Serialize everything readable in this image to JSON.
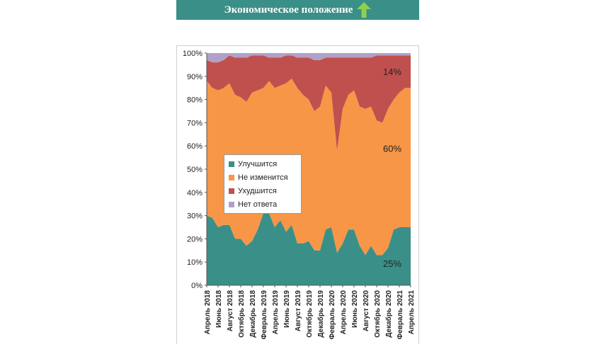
{
  "banner": {
    "title": "Экономическое положение",
    "icon": "arrow-up-icon",
    "icon_color": "#8fd14f",
    "background": "#3a8f88"
  },
  "chart_data": {
    "type": "area",
    "stacked": true,
    "normalized": true,
    "ylim": [
      0,
      100
    ],
    "y_ticks": [
      "0%",
      "10%",
      "20%",
      "30%",
      "40%",
      "50%",
      "60%",
      "70%",
      "80%",
      "90%",
      "100%"
    ],
    "x_ticks": [
      "Апрель 2018",
      "Июнь 2018",
      "Август 2018",
      "Октябрь 2018",
      "Декабрь 2018",
      "Февраль 2019",
      "Апрель 2019",
      "Июнь 2019",
      "Август 2019",
      "Октябрь 2019",
      "Декабрь 2019",
      "Февраль 2020",
      "Апрель 2020",
      "Июнь 2020",
      "Август 2020",
      "Октябрь 2020",
      "Декабрь 2020",
      "Февраль 2021",
      "Апрель 2021"
    ],
    "x": [
      0,
      1,
      2,
      3,
      4,
      5,
      6,
      7,
      8,
      9,
      10,
      11,
      12,
      13,
      14,
      15,
      16,
      17,
      18,
      19,
      20,
      21,
      22,
      23,
      24,
      25,
      26,
      27,
      28,
      29,
      30,
      31,
      32,
      33,
      34,
      35,
      36
    ],
    "series": [
      {
        "name": "Улучшится",
        "color": "#3a8f88",
        "values": [
          30,
          29,
          25,
          26,
          26,
          20,
          20,
          17,
          19,
          24,
          31,
          31,
          25,
          28,
          23,
          26,
          18,
          18,
          19,
          15,
          15,
          24,
          25,
          14,
          18,
          24,
          24,
          17,
          13,
          17,
          13,
          13,
          16,
          24,
          25,
          25,
          25
        ]
      },
      {
        "name": "Не изменится",
        "color": "#f79646",
        "values": [
          58,
          56,
          59,
          59,
          61,
          62,
          61,
          62,
          64,
          60,
          54,
          57,
          60,
          58,
          64,
          63,
          67,
          64,
          61,
          60,
          62,
          62,
          58,
          44,
          58,
          58,
          60,
          60,
          63,
          60,
          58,
          57,
          60,
          56,
          58,
          60,
          60
        ]
      },
      {
        "name": "Ухудшится",
        "color": "#c0504d",
        "values": [
          9,
          11,
          12,
          12,
          12,
          16,
          17,
          19,
          16,
          15,
          14,
          10,
          13,
          12,
          12,
          10,
          13,
          16,
          18,
          22,
          20,
          12,
          15,
          40,
          22,
          16,
          14,
          21,
          22,
          21,
          28,
          29,
          23,
          19,
          16,
          14,
          14
        ]
      },
      {
        "name": "Нет ответа",
        "color": "#b1a0c7",
        "values": [
          3,
          4,
          4,
          3,
          1,
          2,
          2,
          2,
          1,
          1,
          1,
          2,
          2,
          2,
          1,
          1,
          2,
          2,
          2,
          3,
          3,
          2,
          2,
          2,
          2,
          2,
          2,
          2,
          2,
          2,
          1,
          1,
          1,
          1,
          1,
          1,
          1
        ]
      }
    ],
    "annotations": [
      "14%",
      "60%",
      "25%"
    ],
    "legend_position": "left-center"
  }
}
